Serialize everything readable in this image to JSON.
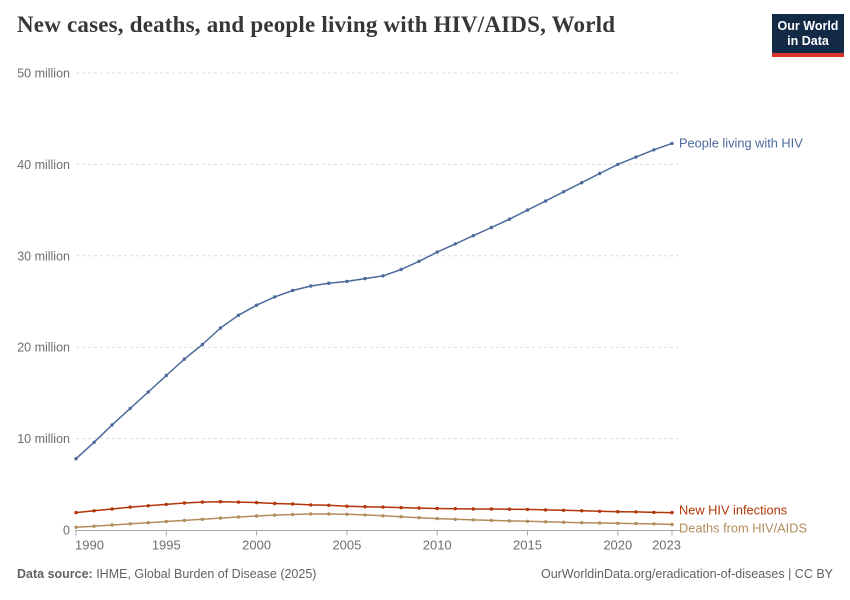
{
  "header": {
    "title": "New cases, deaths, and people living with HIV/AIDS, World",
    "logo_line1": "Our World",
    "logo_line2": "in Data",
    "logo_bg_color": "#132A47",
    "logo_stripe_color": "#D7352B"
  },
  "footer": {
    "source_label": "Data source:",
    "source_text": " IHME, Global Burden of Disease (2025)",
    "attribution": "OurWorldinData.org/eradication-of-diseases | CC BY"
  },
  "chart_data": {
    "type": "line",
    "title": "New cases, deaths, and people living with HIV/AIDS, World",
    "unit": "million",
    "xlabel": "",
    "ylabel": "",
    "ylim": [
      0,
      50
    ],
    "grid": "horizontal-dashed",
    "legend_position": "line-end-labels",
    "x": [
      1990,
      1991,
      1992,
      1993,
      1994,
      1995,
      1996,
      1997,
      1998,
      1999,
      2000,
      2001,
      2002,
      2003,
      2004,
      2005,
      2006,
      2007,
      2008,
      2009,
      2010,
      2011,
      2012,
      2013,
      2014,
      2015,
      2016,
      2017,
      2018,
      2019,
      2020,
      2021,
      2022,
      2023
    ],
    "xticks": [
      1990,
      1995,
      2000,
      2005,
      2010,
      2015,
      2020,
      2023
    ],
    "yticks": [
      {
        "value": 0,
        "label": "0"
      },
      {
        "value": 10,
        "label": "10 million"
      },
      {
        "value": 20,
        "label": "20 million"
      },
      {
        "value": 30,
        "label": "30 million"
      },
      {
        "value": 40,
        "label": "40 million"
      },
      {
        "value": 50,
        "label": "50 million"
      }
    ],
    "series": [
      {
        "name": "People living with HIV",
        "slug": "people-living-with-hiv",
        "color": "#4C6A9C",
        "values": [
          7.8,
          9.6,
          11.5,
          13.3,
          15.1,
          16.9,
          18.7,
          20.3,
          22.1,
          23.5,
          24.6,
          25.5,
          26.2,
          26.7,
          27.0,
          27.2,
          27.5,
          27.8,
          28.5,
          29.4,
          30.4,
          31.3,
          32.2,
          33.1,
          34.0,
          35.0,
          36.0,
          37.0,
          38.0,
          39.0,
          40.0,
          40.8,
          41.6,
          42.3
        ]
      },
      {
        "name": "New HIV infections",
        "slug": "new-hiv-infections",
        "color": "#B13507",
        "values": [
          1.9,
          2.1,
          2.3,
          2.5,
          2.65,
          2.8,
          2.95,
          3.05,
          3.1,
          3.05,
          3.0,
          2.9,
          2.85,
          2.75,
          2.7,
          2.6,
          2.55,
          2.5,
          2.45,
          2.4,
          2.35,
          2.33,
          2.3,
          2.3,
          2.28,
          2.25,
          2.2,
          2.15,
          2.1,
          2.05,
          2.0,
          1.98,
          1.93,
          1.9
        ]
      },
      {
        "name": "Deaths from HIV/AIDS",
        "slug": "deaths-from-hiv-aids",
        "color": "#B28C5C",
        "values": [
          0.3,
          0.42,
          0.55,
          0.68,
          0.8,
          0.93,
          1.05,
          1.17,
          1.3,
          1.42,
          1.53,
          1.63,
          1.7,
          1.75,
          1.76,
          1.72,
          1.65,
          1.55,
          1.45,
          1.35,
          1.25,
          1.17,
          1.1,
          1.05,
          1.0,
          0.95,
          0.9,
          0.85,
          0.8,
          0.77,
          0.73,
          0.7,
          0.67,
          0.6
        ]
      }
    ],
    "axis_colors": {
      "grid": "#dcdcdc",
      "axis_line": "#a8a8a8",
      "tick_text": "#6e6e6e"
    }
  }
}
